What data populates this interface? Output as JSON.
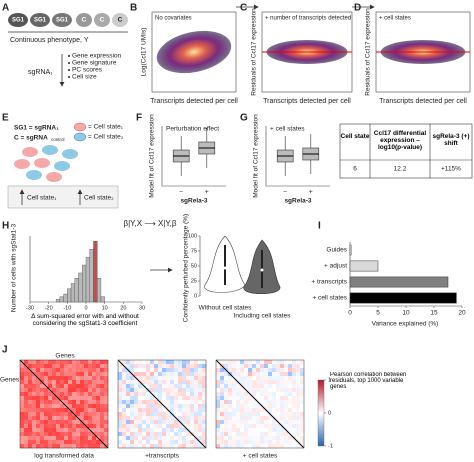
{
  "panels": {
    "a": {
      "label": "A",
      "guides": [
        "SG1",
        "SG1",
        "SG1"
      ],
      "controls": [
        "C",
        "C",
        "C"
      ],
      "phenotype": "Continuous phenotype, Y",
      "sgrna": "sgRNA₁",
      "readouts": [
        "Gene expression",
        "Gene signature",
        "PC scores",
        "Cell size"
      ]
    },
    "b": {
      "label": "B",
      "note": "No covariates",
      "ylabel": "Log(Ccl17 UMIs)",
      "xlabel": "Transcripts detected per cell"
    },
    "c": {
      "label": "C",
      "note": "+ number of transcripts detected",
      "ylabel": "Residuals of Ccl17 expression",
      "xlabel": "Transcripts detected per cell"
    },
    "d": {
      "label": "D",
      "note": "+ cell states",
      "ylabel": "Residuals of Ccl17 expression",
      "xlabel": "Transcripts detected per cell"
    },
    "e": {
      "label": "E",
      "key": [
        "SG1 = sgRNA₁",
        "C = sgRNA",
        "= Cell state₁",
        "= Cell state₂"
      ],
      "key_sub": "control",
      "states": [
        "Cell state₁",
        "Cell state₂"
      ]
    },
    "f": {
      "label": "F",
      "note": "Perturbation effect",
      "ylabel": "Model fit of Ccl17 expression",
      "ticks": [
        "–",
        "+"
      ],
      "xlabel": "sgRela-3"
    },
    "g": {
      "label": "G",
      "note": "+ cell states",
      "ylabel": "Model fit of Ccl17 expression",
      "ticks": [
        "–",
        "+"
      ],
      "xlabel": "sgRela-3"
    },
    "table": {
      "header": [
        "Cell state",
        "Ccl17 differential expression –log10(p-value)",
        "sgRela-3 (+) shift"
      ],
      "rows": [
        [
          "6",
          "12.2",
          "+115%"
        ]
      ]
    },
    "h": {
      "label": "H",
      "formula": "β|Y,X ⟶ X|Y,β",
      "ylabel": "Number of cells with sgStat1-3",
      "xlabel": "Δ sum-squared error with and without considering the sgStat1-3 coefficient",
      "bins": [
        -16,
        -14,
        -12,
        -10,
        -8,
        -6,
        -4,
        -2,
        0,
        2,
        4,
        6,
        8,
        10
      ],
      "counts": [
        1,
        2,
        3,
        5,
        7,
        9,
        11,
        14,
        17,
        20,
        23,
        9,
        2
      ],
      "ylim": [
        0,
        25
      ],
      "xlim": [
        -30,
        30
      ],
      "xticks": [
        -30,
        -20,
        -10,
        0,
        10,
        20,
        30
      ],
      "bar_color": "#b8b8b8",
      "highlight_color": "#c0504d",
      "highlight_bin": 10,
      "violin_ylabel": "Confidently perturbed percentage (%)",
      "violin_ylim": [
        0,
        100
      ],
      "violin_yticks": [
        0,
        25,
        50,
        75,
        100
      ],
      "violins": [
        "Without cell states",
        "Including cell states"
      ]
    },
    "i": {
      "label": "I",
      "categories": [
        "Guides",
        "+ adjust",
        "+ transcripts",
        "+ cell states"
      ],
      "values": [
        0.2,
        5,
        17.5,
        19
      ],
      "colors": [
        "#ffffff",
        "#d9d9d9",
        "#808080",
        "#000000"
      ],
      "xlim": [
        0,
        20
      ],
      "xticks": [
        0,
        5,
        10,
        15,
        20
      ],
      "xlabel": "Variance explained (%)"
    },
    "j": {
      "label": "J",
      "top": "Genes",
      "side": "Genes",
      "maps": [
        "log transformed data",
        "+transcripts",
        "+ cell states"
      ],
      "legend": "Pearson correlation between residuals, top 1000 variable genes",
      "ticks": [
        -1,
        0,
        1
      ],
      "clim": [
        -1,
        1
      ]
    }
  }
}
